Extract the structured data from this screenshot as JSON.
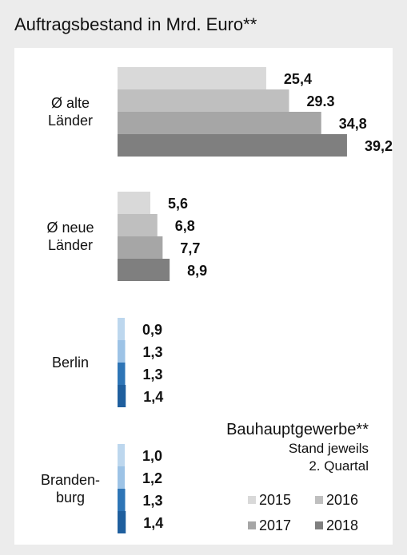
{
  "title": "Auftragsbestand in Mrd. Euro**",
  "note": {
    "main": "Bauhauptgewerbe**",
    "sub1": "Stand jeweils",
    "sub2": "2. Quartal"
  },
  "colors": {
    "gray_series": [
      "#d9d9d9",
      "#bfbfbf",
      "#a6a6a6",
      "#7f7f7f"
    ],
    "blue_series": [
      "#bdd7ee",
      "#9dc3e6",
      "#2e75b6",
      "#1f5f9e"
    ],
    "background": "#ececec",
    "panel": "#ffffff"
  },
  "chart_data": {
    "type": "bar",
    "orientation": "horizontal",
    "title": "Auftragsbestand in Mrd. Euro**",
    "legend_position": "bottom-right",
    "grid": false,
    "series": [
      {
        "name": "2015",
        "values": [
          25.4,
          5.6,
          0.9,
          1.0
        ]
      },
      {
        "name": "2016",
        "values": [
          29.3,
          6.8,
          1.3,
          1.2
        ]
      },
      {
        "name": "2017",
        "values": [
          34.8,
          7.7,
          1.3,
          1.3
        ]
      },
      {
        "name": "2018",
        "values": [
          39.2,
          8.9,
          1.4,
          1.4
        ]
      }
    ],
    "groups": [
      {
        "label_lines": [
          "Ø alte",
          "Länder"
        ],
        "value_labels": [
          "25,4",
          "29.3",
          "34,8",
          "39,2"
        ]
      },
      {
        "label_lines": [
          "Ø neue",
          "Länder"
        ],
        "value_labels": [
          "5,6",
          "6,8",
          "7,7",
          "8,9"
        ]
      },
      {
        "label_lines": [
          "Berlin"
        ],
        "value_labels": [
          "0,9",
          "1,3",
          "1,3",
          "1,4"
        ]
      },
      {
        "label_lines": [
          "Branden-",
          "burg"
        ],
        "value_labels": [
          "1,0",
          "1,2",
          "1,3",
          "1,4"
        ]
      }
    ]
  }
}
